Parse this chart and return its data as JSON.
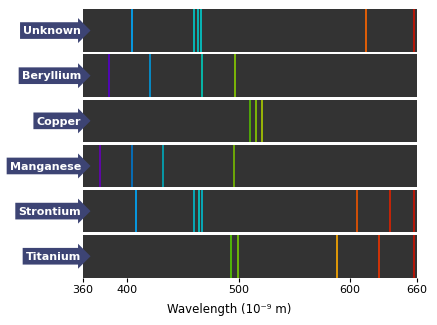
{
  "elements": [
    "Unknown",
    "Beryllium",
    "Copper",
    "Manganese",
    "Strontium",
    "Titanium"
  ],
  "spectra": {
    "Unknown": [
      {
        "wl": 404,
        "color": "#00aaff"
      },
      {
        "wl": 460,
        "color": "#00cccc"
      },
      {
        "wl": 463,
        "color": "#00cccc"
      },
      {
        "wl": 466,
        "color": "#00cccc"
      },
      {
        "wl": 614,
        "color": "#ff6600"
      },
      {
        "wl": 657,
        "color": "#cc1100"
      }
    ],
    "Beryllium": [
      {
        "wl": 383,
        "color": "#5500cc"
      },
      {
        "wl": 420,
        "color": "#0099dd"
      },
      {
        "wl": 467,
        "color": "#00ccbb"
      },
      {
        "wl": 497,
        "color": "#88cc00"
      }
    ],
    "Copper": [
      {
        "wl": 510,
        "color": "#55bb00"
      },
      {
        "wl": 515,
        "color": "#88cc00"
      },
      {
        "wl": 521,
        "color": "#aacc00"
      }
    ],
    "Manganese": [
      {
        "wl": 375,
        "color": "#6600bb"
      },
      {
        "wl": 404,
        "color": "#0077cc"
      },
      {
        "wl": 432,
        "color": "#00aabb"
      },
      {
        "wl": 496,
        "color": "#77bb00"
      }
    ],
    "Strontium": [
      {
        "wl": 408,
        "color": "#00aaff"
      },
      {
        "wl": 460,
        "color": "#00bbcc"
      },
      {
        "wl": 464,
        "color": "#00cccc"
      },
      {
        "wl": 467,
        "color": "#00bbcc"
      },
      {
        "wl": 606,
        "color": "#ee5500"
      },
      {
        "wl": 636,
        "color": "#dd2200"
      },
      {
        "wl": 657,
        "color": "#cc1100"
      }
    ],
    "Titanium": [
      {
        "wl": 493,
        "color": "#55cc00"
      },
      {
        "wl": 499,
        "color": "#77cc00"
      },
      {
        "wl": 588,
        "color": "#ffaa00"
      },
      {
        "wl": 626,
        "color": "#ee3300"
      },
      {
        "wl": 657,
        "color": "#cc1100"
      }
    ]
  },
  "xmin": 360,
  "xmax": 660,
  "xticks": [
    360,
    400,
    500,
    600,
    660
  ],
  "bg_color": "#333333",
  "label_bg": "#3d4474",
  "label_text": "white",
  "fig_bg": "white",
  "xlabel": "Wavelength (10⁻⁹ m)",
  "label_fontsize": 8.0,
  "axis_fontsize": 8.5,
  "line_lw": 1.2
}
